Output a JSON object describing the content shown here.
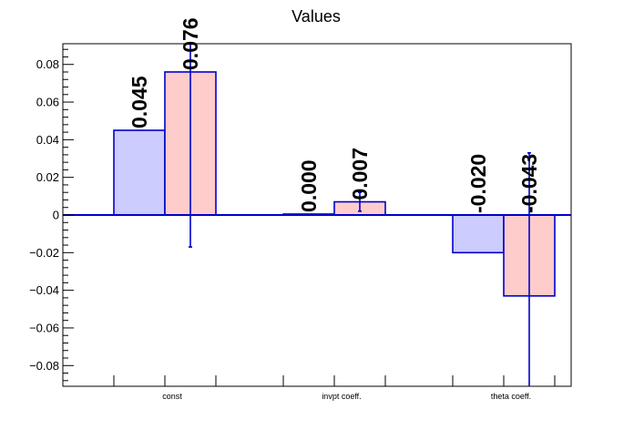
{
  "chart_data": {
    "type": "bar",
    "title": "Values",
    "categories": [
      "const",
      "invpt coeff.",
      "theta coeff."
    ],
    "ylim": [
      -0.091,
      0.091
    ],
    "yticks": [
      -0.08,
      -0.06,
      -0.04,
      -0.02,
      0,
      0.02,
      0.04,
      0.06,
      0.08
    ],
    "ytick_labels": [
      "−0.08",
      "−0.06",
      "−0.04",
      "−0.02",
      "0",
      "0.02",
      "0.04",
      "0.06",
      "0.08"
    ],
    "grid": false,
    "series": [
      {
        "values": [
          0.045,
          0.0005,
          -0.02
        ],
        "labels": [
          "0.045",
          "0.000",
          "-0.020"
        ],
        "errors": [
          null,
          null,
          null
        ],
        "color": "#ccccff"
      },
      {
        "values": [
          0.076,
          0.007,
          -0.043
        ],
        "labels": [
          "0.076",
          "0.007",
          "-0.043"
        ],
        "errors": [
          0.093,
          0.005,
          0.076
        ],
        "color": "#ffcccc"
      }
    ],
    "edge_color": "#0000cc"
  }
}
